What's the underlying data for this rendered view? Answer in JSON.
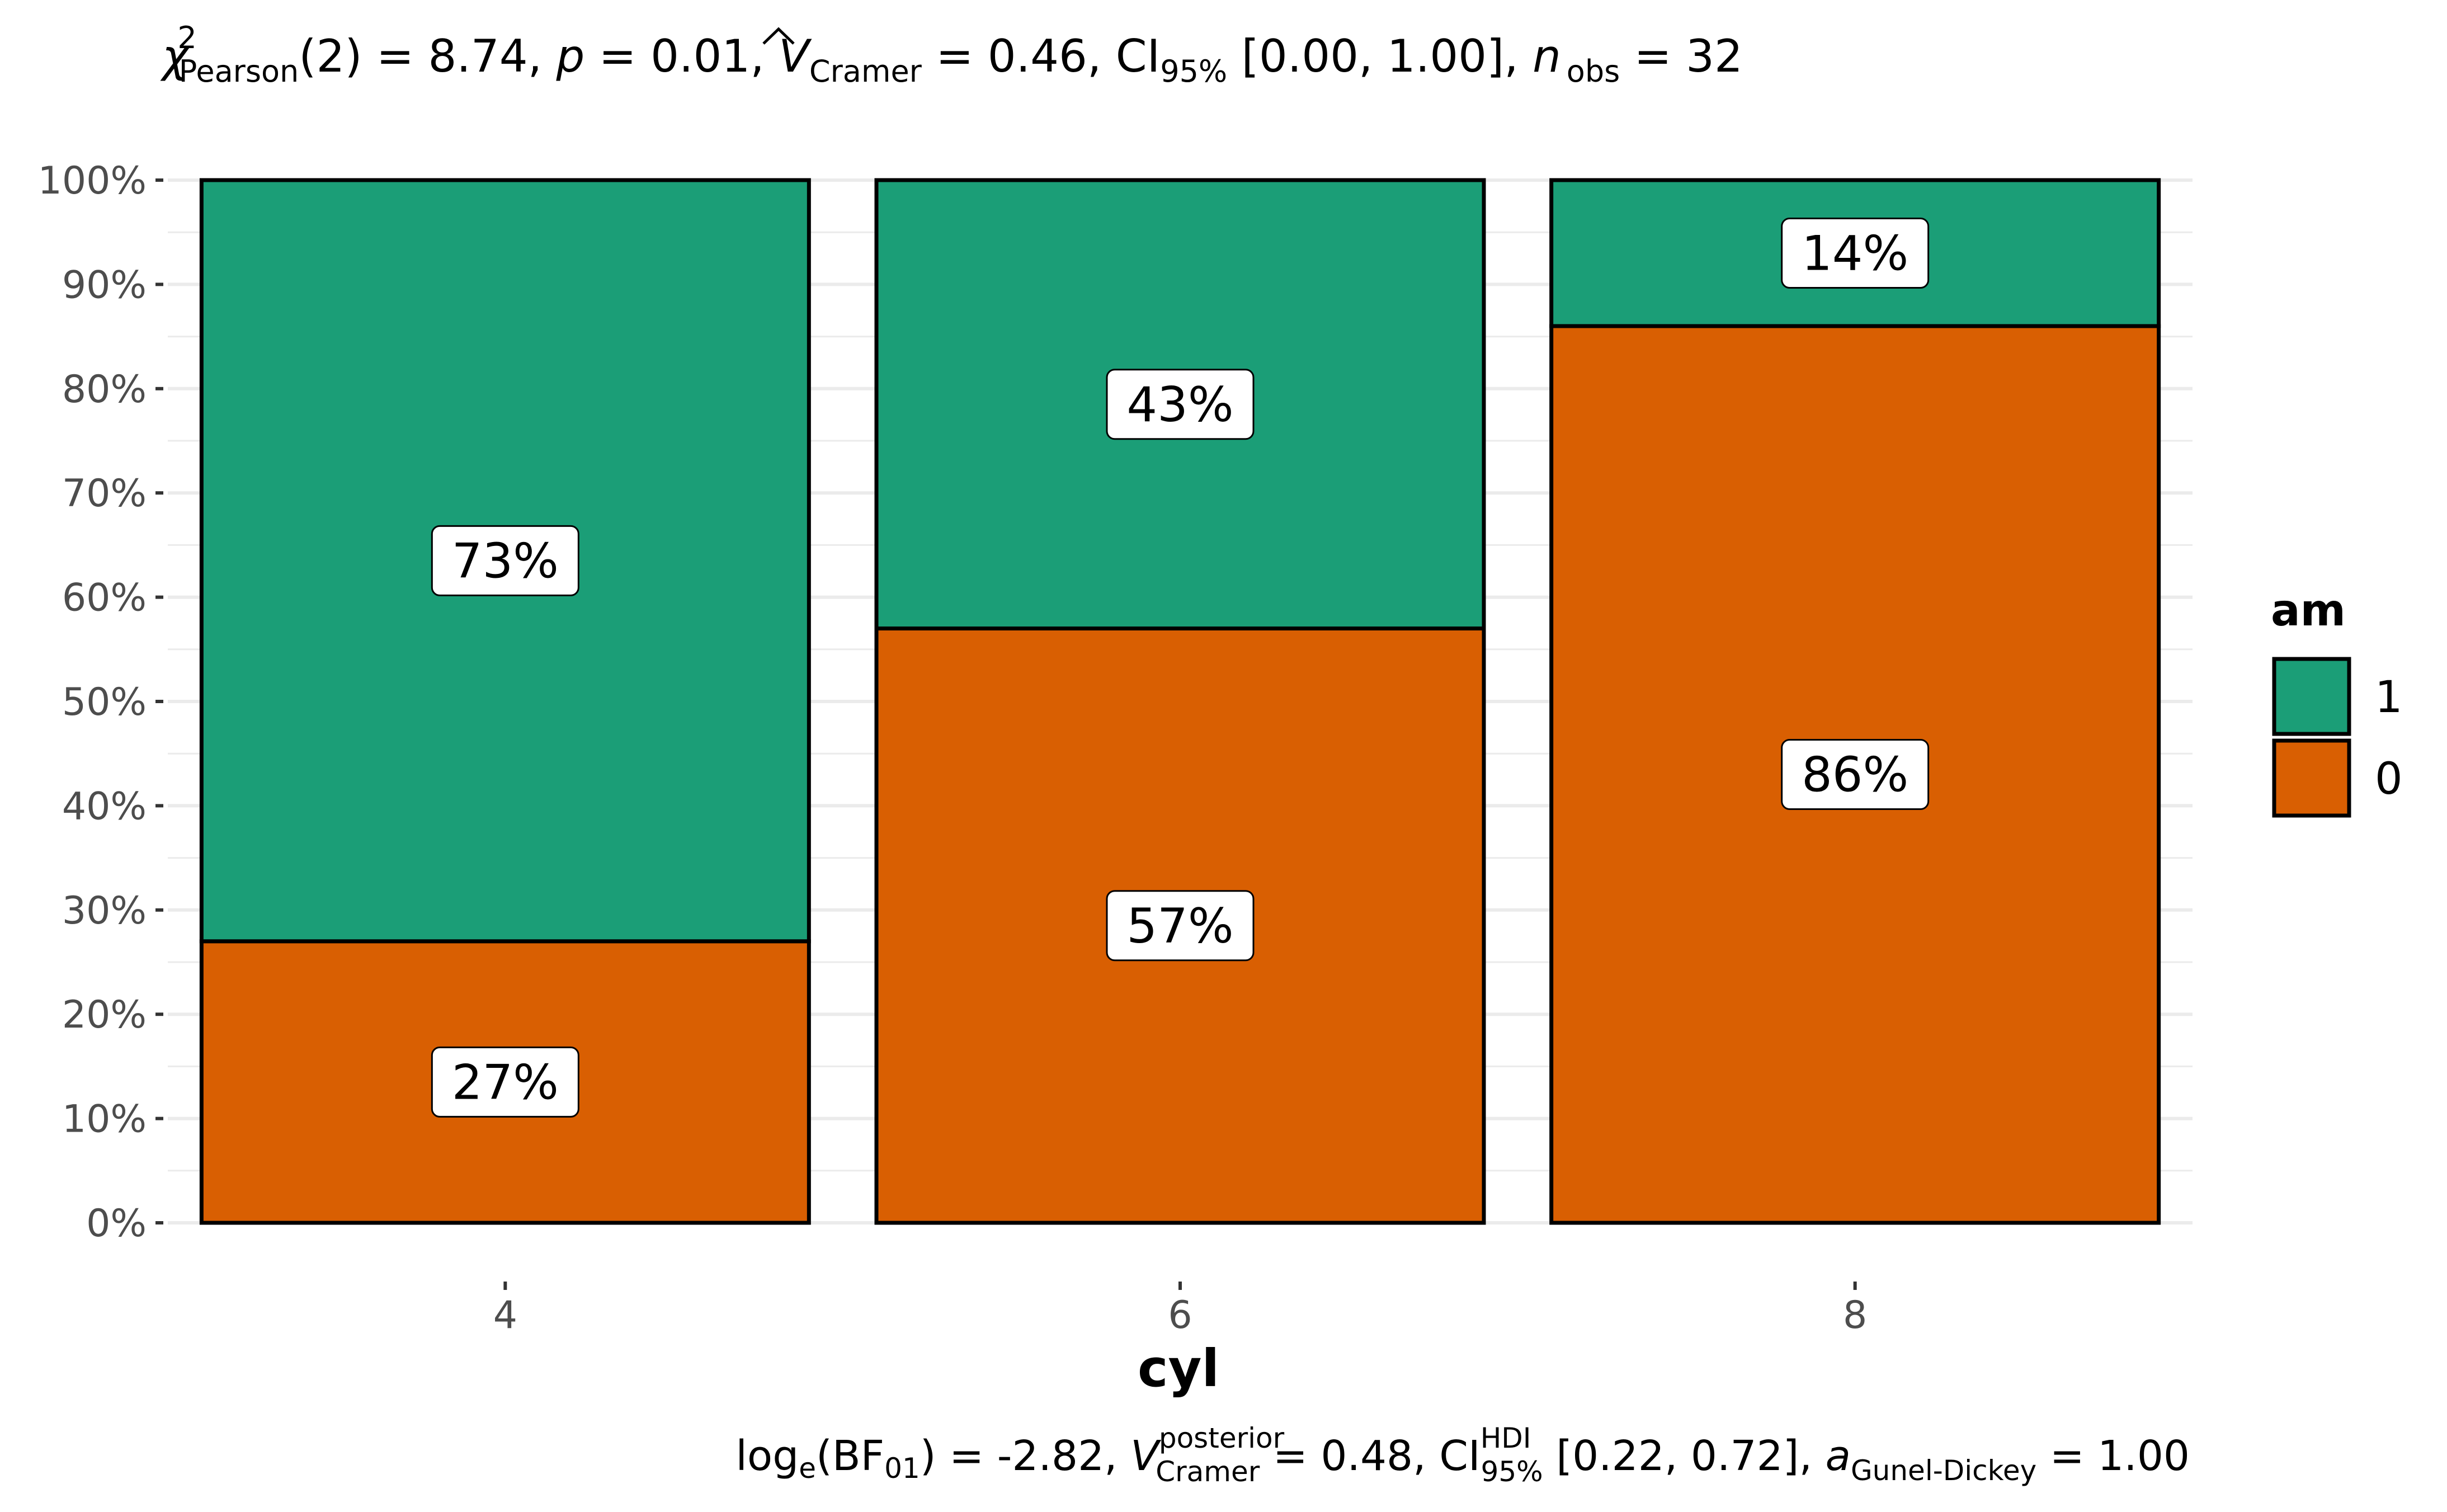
{
  "chart_data": {
    "type": "bar",
    "stacked": "percent",
    "subtitle": {
      "chi": "χ",
      "chi_sup": "2",
      "chi_sub": "Pearson",
      "df": "(2)",
      "eq1": " = 8.74, ",
      "p": "p",
      "eq2": " = 0.01, ",
      "V": "V",
      "V_sub": "Cramer",
      "eq3": " = 0.46, CI",
      "ci_sub": "95%",
      "eq4": " [0.00, 1.00], ",
      "n": "n",
      "n_sub": "obs",
      "eq5": " = 32"
    },
    "caption": {
      "log": "log",
      "log_sub": "e",
      "bf": "(BF",
      "bf_sub": "01",
      "eq1": ") = -2.82, ",
      "V": "V",
      "V_sup": "posterior",
      "V_sub": "Cramer",
      "eq2": " = 0.48, CI",
      "ci_sup": "HDI",
      "ci_sub": "95%",
      "eq3": " [0.22, 0.72], ",
      "a": "a",
      "a_sub": "Gunel-Dickey",
      "eq4": " = 1.00"
    },
    "xlabel": "cyl",
    "ylabel": "",
    "categories": [
      "4",
      "6",
      "8"
    ],
    "ylim": [
      0,
      1
    ],
    "yticks": [
      "0%",
      "10%",
      "20%",
      "30%",
      "40%",
      "50%",
      "60%",
      "70%",
      "80%",
      "90%",
      "100%"
    ],
    "series": [
      {
        "name": "0",
        "color": "#D95F02",
        "values": [
          0.27,
          0.57,
          0.86
        ],
        "labels": [
          "27%",
          "57%",
          "86%"
        ]
      },
      {
        "name": "1",
        "color": "#1B9E77",
        "values": [
          0.73,
          0.43,
          0.14
        ],
        "labels": [
          "73%",
          "43%",
          "14%"
        ]
      }
    ],
    "legend": {
      "title": "am",
      "placement": "right",
      "order": [
        "1",
        "0"
      ]
    },
    "grid": true
  }
}
